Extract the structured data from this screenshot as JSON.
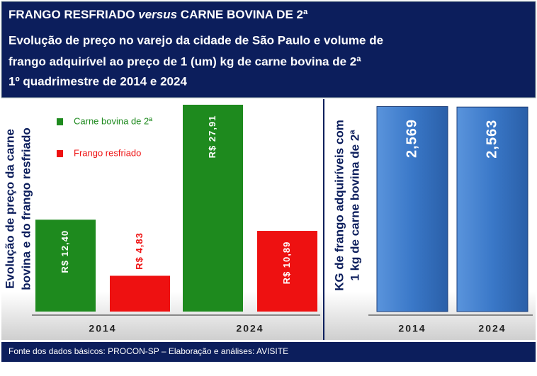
{
  "header": {
    "title_parts": [
      "FRANGO RESFRIADO ",
      "versus",
      " CARNE BOVINA DE 2ª"
    ],
    "subtitle_lines": [
      "Evolução de preço no varejo da cidade de São Paulo e volume de",
      "frango adquirível ao preço de 1 (um) kg de carne bovina de 2ª",
      "1º quadrimestre de 2014 e 2024"
    ]
  },
  "chart_data": [
    {
      "type": "bar",
      "y_label_lines": [
        "Evolução de preço da carne",
        "bovina e do frango resfriado"
      ],
      "categories": [
        "2014",
        "2024"
      ],
      "ylim": [
        0,
        28
      ],
      "series": [
        {
          "name": "Carne bovina de 2ª",
          "color": "#1e8a1e",
          "values": [
            12.4,
            27.91
          ],
          "value_labels": [
            "R$ 12,40",
            "R$ 27,91"
          ]
        },
        {
          "name": "Frango resfriado",
          "color": "#ee1111",
          "values": [
            4.83,
            10.89
          ],
          "value_labels": [
            "R$ 4,83",
            "R$ 10,89"
          ]
        }
      ]
    },
    {
      "type": "bar",
      "y_label_lines": [
        "KG de frango adquiríveis com",
        "1 kg de carne bovina de 2ª"
      ],
      "categories": [
        "2014",
        "2024"
      ],
      "ylim": [
        0,
        2.6
      ],
      "series": [
        {
          "color": "#3a78c8",
          "values": [
            2.569,
            2.563
          ],
          "value_labels": [
            "2,569",
            "2,563"
          ]
        }
      ]
    }
  ],
  "footer": {
    "source": "Fonte dos dados básicos: PROCON-SP – Elaboração e análises: AVISITE"
  }
}
